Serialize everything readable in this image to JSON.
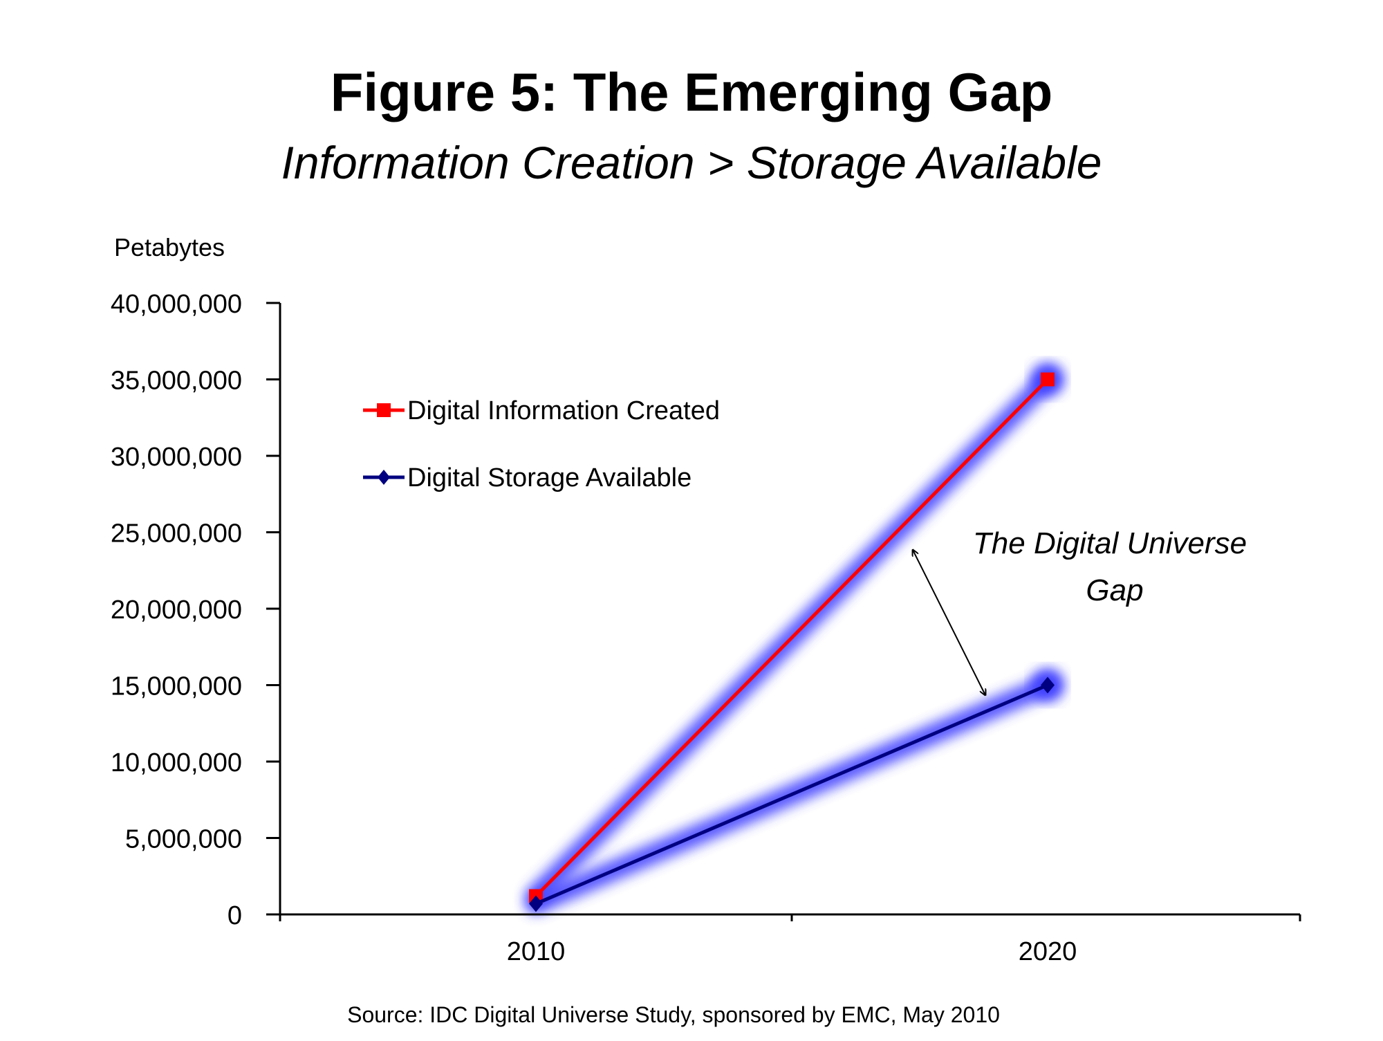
{
  "chart_data": {
    "type": "line",
    "title": "Figure 5:  The Emerging Gap",
    "subtitle": "Information Creation > Storage Available",
    "ylabel": "Petabytes",
    "xlabel": "",
    "ylim": [
      0,
      40000000
    ],
    "yticks": [
      0,
      5000000,
      10000000,
      15000000,
      20000000,
      25000000,
      30000000,
      35000000,
      40000000
    ],
    "ytick_labels": [
      "0",
      "5,000,000",
      "10,000,000",
      "15,000,000",
      "20,000,000",
      "25,000,000",
      "30,000,000",
      "35,000,000",
      "40,000,000"
    ],
    "categories": [
      "2010",
      "2020"
    ],
    "series": [
      {
        "name": "Digital Information Created",
        "values": [
          1200000,
          35000000
        ],
        "color": "#ff0000",
        "marker": "square"
      },
      {
        "name": "Digital Storage Available",
        "values": [
          700000,
          15000000
        ],
        "color": "#000080",
        "marker": "diamond"
      }
    ],
    "glow_color": "#3a3aff",
    "legend_position": "top-left",
    "grid": false,
    "annotation": {
      "lines": [
        "The Digital Universe",
        "Gap"
      ]
    },
    "source": "Source: IDC Digital Universe Study, sponsored by EMC, May 2010"
  }
}
